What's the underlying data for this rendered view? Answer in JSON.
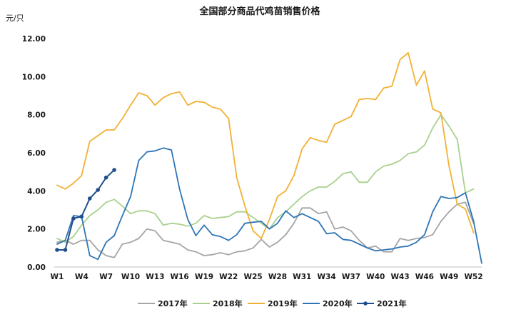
{
  "chart_data": {
    "type": "line",
    "title": "全国部分商品代鸡苗销售价格",
    "ylabel": "元/只",
    "ylim": [
      0,
      12
    ],
    "yticks": [
      "0.00",
      "2.00",
      "4.00",
      "6.00",
      "8.00",
      "10.00",
      "12.00"
    ],
    "x": [
      1,
      2,
      3,
      4,
      5,
      6,
      7,
      8,
      9,
      10,
      11,
      12,
      13,
      14,
      15,
      16,
      17,
      18,
      19,
      20,
      21,
      22,
      23,
      24,
      25,
      26,
      27,
      28,
      29,
      30,
      31,
      32,
      33,
      34,
      35,
      36,
      37,
      38,
      39,
      40,
      41,
      42,
      43,
      44,
      45,
      46,
      47,
      48,
      49,
      50,
      51,
      52,
      53
    ],
    "xtick_labels": [
      "W1",
      "W4",
      "W7",
      "W10",
      "W13",
      "W16",
      "W19",
      "W22",
      "W25",
      "W28",
      "W31",
      "W34",
      "W37",
      "W40",
      "W43",
      "W46",
      "W49",
      "W52"
    ],
    "xtick_weeks": [
      1,
      4,
      7,
      10,
      13,
      16,
      19,
      22,
      25,
      28,
      31,
      34,
      37,
      40,
      43,
      46,
      49,
      52
    ],
    "grid": false,
    "legend_position": "bottom",
    "series": [
      {
        "name": "2017年",
        "color": "#a5a5a5",
        "values": [
          1.3,
          1.4,
          1.2,
          1.4,
          1.4,
          0.9,
          0.6,
          0.5,
          1.2,
          1.3,
          1.5,
          2.0,
          1.9,
          1.4,
          1.3,
          1.2,
          0.9,
          0.8,
          0.6,
          0.65,
          0.75,
          0.65,
          0.8,
          0.85,
          1.0,
          1.45,
          1.05,
          1.3,
          1.7,
          2.3,
          3.1,
          3.1,
          2.8,
          2.9,
          2.0,
          2.1,
          1.9,
          1.4,
          1.0,
          1.1,
          0.8,
          0.8,
          1.5,
          1.4,
          1.5,
          1.55,
          1.7,
          2.4,
          2.9,
          3.3,
          3.4,
          2.3,
          null
        ]
      },
      {
        "name": "2018年",
        "color": "#a9d18e",
        "values": [
          1.5,
          1.3,
          1.6,
          2.2,
          2.7,
          3.0,
          3.4,
          3.55,
          3.2,
          2.8,
          2.95,
          2.95,
          2.8,
          2.2,
          2.3,
          2.25,
          2.15,
          2.3,
          2.7,
          2.55,
          2.6,
          2.65,
          2.9,
          2.9,
          2.6,
          2.3,
          2.0,
          2.6,
          2.9,
          3.3,
          3.7,
          4.0,
          4.2,
          4.2,
          4.5,
          4.9,
          5.0,
          4.45,
          4.45,
          5.0,
          5.3,
          5.4,
          5.6,
          5.95,
          6.05,
          6.4,
          7.3,
          8.0,
          7.4,
          6.7,
          3.9,
          4.1,
          null
        ]
      },
      {
        "name": "2019年",
        "color": "#f2b134",
        "values": [
          4.3,
          4.1,
          4.4,
          4.8,
          6.6,
          6.9,
          7.2,
          7.2,
          7.8,
          8.5,
          9.15,
          9.0,
          8.5,
          8.9,
          9.1,
          9.2,
          8.5,
          8.7,
          8.65,
          8.4,
          8.3,
          7.8,
          4.7,
          3.2,
          1.9,
          1.5,
          2.5,
          3.7,
          4.0,
          4.8,
          6.2,
          6.8,
          6.65,
          6.55,
          7.5,
          7.7,
          7.9,
          8.8,
          8.85,
          8.8,
          9.4,
          9.5,
          10.9,
          11.25,
          9.55,
          10.3,
          8.3,
          8.1,
          5.3,
          3.3,
          3.05,
          1.8,
          null
        ]
      },
      {
        "name": "2020年",
        "color": "#2e75b6",
        "values": [
          1.2,
          1.4,
          2.7,
          2.65,
          0.6,
          0.4,
          1.3,
          1.65,
          2.7,
          3.7,
          5.6,
          6.05,
          6.1,
          6.25,
          6.15,
          4.1,
          2.5,
          1.65,
          2.2,
          1.7,
          1.6,
          1.4,
          1.7,
          2.3,
          2.35,
          2.4,
          2.0,
          2.3,
          2.95,
          2.6,
          2.8,
          2.6,
          2.4,
          1.75,
          1.8,
          1.45,
          1.4,
          1.2,
          1.0,
          0.85,
          0.9,
          0.95,
          1.05,
          1.1,
          1.3,
          1.7,
          2.9,
          3.7,
          3.6,
          3.65,
          3.9,
          2.4,
          0.2
        ]
      },
      {
        "name": "2021年",
        "color": "#1f4e8c",
        "values": [
          0.9,
          0.9,
          2.55,
          2.65,
          3.6,
          4.05,
          4.7,
          5.1,
          null,
          null,
          null,
          null,
          null,
          null,
          null,
          null,
          null,
          null,
          null,
          null,
          null,
          null,
          null,
          null,
          null,
          null,
          null,
          null,
          null,
          null,
          null,
          null,
          null,
          null,
          null,
          null,
          null,
          null,
          null,
          null,
          null,
          null,
          null,
          null,
          null,
          null,
          null,
          null,
          null,
          null,
          null,
          null,
          null
        ]
      }
    ]
  }
}
